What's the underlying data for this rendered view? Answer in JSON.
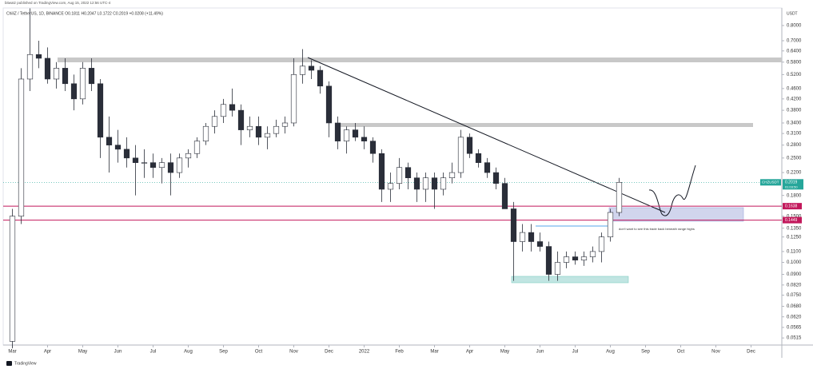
{
  "chart_data": {
    "type": "candlestick",
    "publisher": "bitwatz published on TradingView.com, Aug 15, 2022 12:56 UTC-4",
    "title": "ChiliZ / TetherUS, 1D, BINANCE  O0.1811 H0.2047 L0.1722 C0.2019 +0.0208 (+11.49%)",
    "currency": "USDT",
    "annotation": "don't want to see this trade back beneath range highs",
    "footer": "TradingView",
    "color": "#2a2e39",
    "log_scale": true,
    "grid": false,
    "categories": [
      "Mar",
      null,
      null,
      null,
      "Apr",
      null,
      null,
      null,
      "May",
      null,
      null,
      null,
      "Jun",
      null,
      null,
      null,
      "Jul",
      null,
      null,
      null,
      "Aug",
      null,
      null,
      null,
      "Sep",
      null,
      null,
      null,
      "Oct",
      null,
      null,
      null,
      "Nov",
      null,
      null,
      null,
      "Dec",
      null,
      null,
      null,
      "2022",
      null,
      null,
      null,
      "Feb",
      null,
      null,
      null,
      "Mar",
      null,
      null,
      null,
      "Apr",
      null,
      null,
      null,
      "May",
      null,
      null,
      null,
      "Jun",
      null,
      null,
      null,
      "Jul",
      null,
      null,
      null,
      "Aug",
      null,
      null,
      null,
      "Sep",
      null,
      null,
      null,
      "Oct",
      null,
      null,
      null,
      "Nov",
      null,
      null,
      null,
      "Dec",
      null,
      null,
      null
    ],
    "open": [
      0.05,
      0.15,
      0.5,
      0.62,
      0.6,
      0.5,
      0.55,
      0.48,
      0.42,
      0.55,
      0.48,
      0.3,
      0.28,
      0.27,
      0.25,
      0.24,
      0.24,
      0.23,
      0.24,
      0.22,
      0.25,
      0.26,
      0.29,
      0.33,
      0.36,
      0.4,
      0.38,
      0.32,
      0.33,
      0.3,
      0.31,
      0.33,
      0.34,
      0.52,
      0.56,
      0.54,
      0.47,
      0.34,
      0.29,
      0.32,
      0.3,
      0.29,
      0.26,
      0.19,
      0.2,
      0.23,
      0.21,
      0.19,
      0.21,
      0.19,
      0.21,
      0.22,
      0.3,
      0.26,
      0.24,
      0.22,
      0.2,
      0.16,
      0.12,
      0.13,
      0.12,
      0.115,
      0.09,
      0.1,
      0.105,
      0.102,
      0.105,
      0.11,
      0.125,
      0.155,
      null,
      null,
      null,
      null,
      null,
      null,
      null,
      null,
      null,
      null,
      null,
      null,
      null,
      null,
      null,
      null,
      null,
      null
    ],
    "high": [
      0.16,
      0.55,
      0.93,
      0.7,
      0.66,
      0.58,
      0.6,
      0.52,
      0.58,
      0.6,
      0.5,
      0.36,
      0.32,
      0.3,
      0.28,
      0.27,
      0.26,
      0.25,
      0.26,
      0.26,
      0.27,
      0.3,
      0.34,
      0.38,
      0.42,
      0.46,
      0.4,
      0.36,
      0.36,
      0.33,
      0.35,
      0.36,
      0.6,
      0.65,
      0.59,
      0.56,
      0.49,
      0.36,
      0.33,
      0.34,
      0.33,
      0.3,
      0.27,
      0.22,
      0.25,
      0.24,
      0.22,
      0.22,
      0.22,
      0.22,
      0.24,
      0.32,
      0.31,
      0.27,
      0.25,
      0.23,
      0.21,
      0.17,
      0.14,
      0.14,
      0.13,
      0.12,
      0.11,
      0.11,
      0.11,
      0.11,
      0.115,
      0.13,
      0.16,
      0.21,
      null,
      null,
      null,
      null,
      null,
      null,
      null,
      null,
      null,
      null,
      null,
      null,
      null,
      null,
      null,
      null,
      null,
      null
    ],
    "low": [
      0.047,
      0.14,
      0.45,
      0.55,
      0.48,
      0.46,
      0.45,
      0.38,
      0.4,
      0.45,
      0.25,
      0.22,
      0.24,
      0.23,
      0.18,
      0.21,
      0.21,
      0.2,
      0.18,
      0.21,
      0.23,
      0.25,
      0.28,
      0.31,
      0.34,
      0.36,
      0.28,
      0.3,
      0.28,
      0.27,
      0.3,
      0.31,
      0.33,
      0.48,
      0.5,
      0.44,
      0.3,
      0.27,
      0.26,
      0.29,
      0.27,
      0.24,
      0.17,
      0.17,
      0.19,
      0.19,
      0.17,
      0.17,
      0.16,
      0.18,
      0.2,
      0.21,
      0.25,
      0.23,
      0.21,
      0.19,
      0.16,
      0.085,
      0.11,
      0.11,
      0.11,
      0.085,
      0.085,
      0.095,
      0.098,
      0.097,
      0.1,
      0.1,
      0.12,
      0.15,
      null,
      null,
      null,
      null,
      null,
      null,
      null,
      null,
      null,
      null,
      null,
      null,
      null,
      null,
      null,
      null,
      null,
      null
    ],
    "close": [
      0.15,
      0.5,
      0.62,
      0.6,
      0.5,
      0.55,
      0.48,
      0.42,
      0.55,
      0.48,
      0.3,
      0.28,
      0.27,
      0.25,
      0.24,
      0.24,
      0.23,
      0.24,
      0.22,
      0.25,
      0.26,
      0.29,
      0.33,
      0.36,
      0.4,
      0.38,
      0.32,
      0.33,
      0.3,
      0.31,
      0.33,
      0.34,
      0.52,
      0.56,
      0.54,
      0.47,
      0.34,
      0.29,
      0.32,
      0.3,
      0.29,
      0.26,
      0.19,
      0.2,
      0.23,
      0.21,
      0.19,
      0.21,
      0.19,
      0.21,
      0.22,
      0.3,
      0.26,
      0.24,
      0.22,
      0.2,
      0.16,
      0.12,
      0.13,
      0.12,
      0.115,
      0.09,
      0.1,
      0.105,
      0.102,
      0.105,
      0.11,
      0.125,
      0.155,
      0.2019,
      null,
      null,
      null,
      null,
      null,
      null,
      null,
      null,
      null,
      null,
      null,
      null,
      null,
      null,
      null,
      null,
      null,
      null
    ],
    "ylim": [
      0.0484,
      0.933
    ],
    "yticks": [
      {
        "value": 0.8,
        "label": "0.8000"
      },
      {
        "value": 0.7,
        "label": "0.7000"
      },
      {
        "value": 0.64,
        "label": "0.6400"
      },
      {
        "value": 0.58,
        "label": "0.5800"
      },
      {
        "value": 0.52,
        "label": "0.5200"
      },
      {
        "value": 0.46,
        "label": "0.4600"
      },
      {
        "value": 0.42,
        "label": "0.4200"
      },
      {
        "value": 0.38,
        "label": "0.3800"
      },
      {
        "value": 0.34,
        "label": "0.3400"
      },
      {
        "value": 0.31,
        "label": "0.3100"
      },
      {
        "value": 0.28,
        "label": "0.2800"
      },
      {
        "value": 0.25,
        "label": "0.2500"
      },
      {
        "value": 0.22,
        "label": "0.2200"
      },
      {
        "value": 0.18,
        "label": "0.1800"
      },
      {
        "value": 0.15,
        "label": "0.1500"
      },
      {
        "value": 0.135,
        "label": "0.1350"
      },
      {
        "value": 0.125,
        "label": "0.1250"
      },
      {
        "value": 0.11,
        "label": "0.1100"
      },
      {
        "value": 0.1,
        "label": "0.1000"
      },
      {
        "value": 0.09,
        "label": "0.0900"
      },
      {
        "value": 0.082,
        "label": "0.0820"
      },
      {
        "value": 0.075,
        "label": "0.0750"
      },
      {
        "value": 0.068,
        "label": "0.0680"
      },
      {
        "value": 0.062,
        "label": "0.0620"
      },
      {
        "value": 0.0565,
        "label": "0.0565"
      },
      {
        "value": 0.0515,
        "label": "0.0515"
      }
    ],
    "last_price": {
      "symbol": "CHZUSDT",
      "value": 0.2019,
      "countdown": "01:03:50",
      "color": "#26a69a"
    },
    "levels": [
      {
        "value": 0.1638,
        "color": "#c2185b"
      },
      {
        "value": 0.1449,
        "color": "#c2185b"
      }
    ]
  }
}
